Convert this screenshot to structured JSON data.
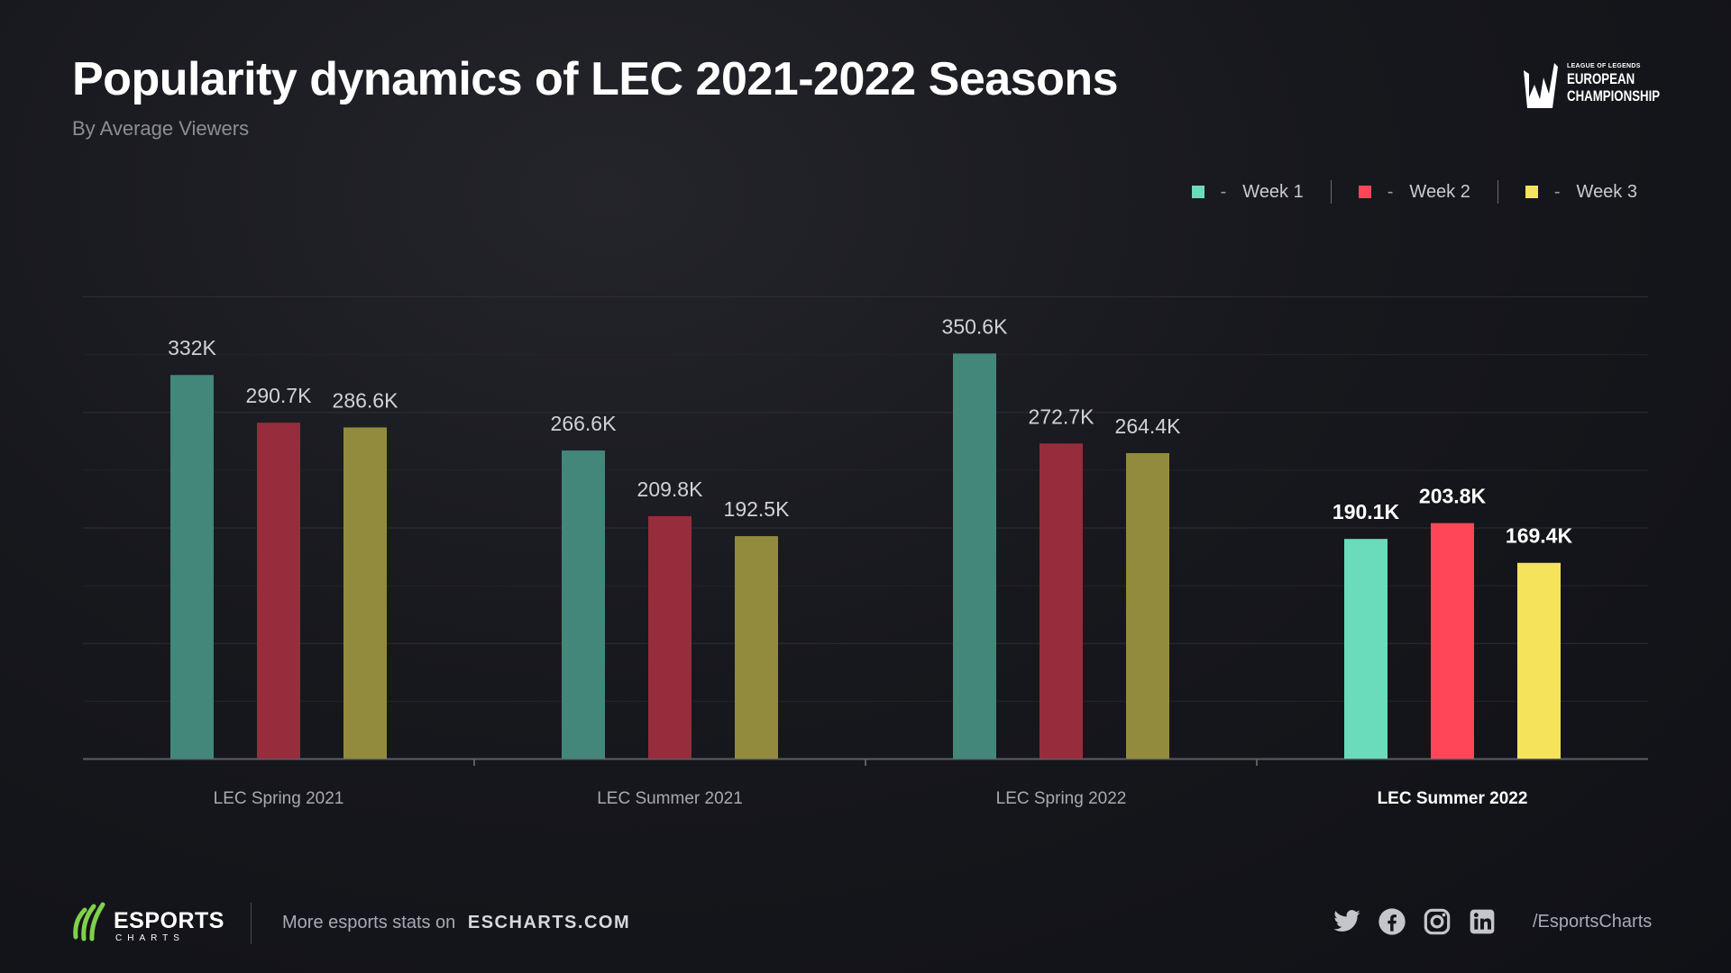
{
  "header": {
    "title": "Popularity dynamics of LEC 2021-2022 Seasons",
    "subtitle": "By Average Viewers"
  },
  "logo": {
    "line1": "LEAGUE OF LEGENDS",
    "line2": "EUROPEAN",
    "line3": "CHAMPIONSHIP"
  },
  "legend": [
    {
      "marker": "-",
      "label": "Week 1"
    },
    {
      "marker": "-",
      "label": "Week 2"
    },
    {
      "marker": "-",
      "label": "Week 3"
    }
  ],
  "colors": {
    "dim": [
      "#42877a",
      "#972d3c",
      "#928b3d"
    ],
    "bright": [
      "#6adcbb",
      "#fe4658",
      "#f5e35b"
    ],
    "legend": [
      "#6adcbb",
      "#fe4658",
      "#f5e35b"
    ]
  },
  "chart_data": {
    "type": "bar",
    "categories": [
      "LEC Spring 2021",
      "LEC Summer 2021",
      "LEC Spring 2022",
      "LEC Summer 2022"
    ],
    "highlighted_category": "LEC Summer 2022",
    "series": [
      {
        "name": "Week 1",
        "values": [
          332,
          266.6,
          350.6,
          190.1
        ],
        "labels": [
          "332K",
          "266.6K",
          "350.6K",
          "190.1K"
        ]
      },
      {
        "name": "Week 2",
        "values": [
          290.7,
          209.8,
          272.7,
          203.8
        ],
        "labels": [
          "290.7K",
          "209.8K",
          "272.7K",
          "203.8K"
        ]
      },
      {
        "name": "Week 3",
        "values": [
          286.6,
          192.5,
          264.4,
          169.4
        ],
        "labels": [
          "286.6K",
          "192.5K",
          "264.4K",
          "169.4K"
        ]
      }
    ],
    "ylim": [
      0,
      400
    ],
    "grid": true,
    "legend_position": "top-right"
  },
  "footer": {
    "brand": "ESPORTS",
    "brand_sub": "CHARTS",
    "text": "More esports stats on",
    "url": "ESCHARTS.COM",
    "handle": "/EsportsCharts",
    "social_icons": [
      "twitter-icon",
      "facebook-icon",
      "instagram-icon",
      "linkedin-icon"
    ]
  }
}
